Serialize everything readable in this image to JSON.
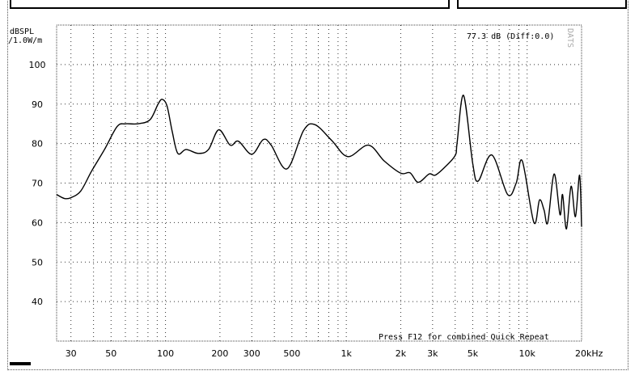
{
  "chart_data": {
    "type": "line",
    "ylabel": "dBSPL",
    "ylabel_unit": "/1.0W/m",
    "xunit": "kHz",
    "xscale": "log",
    "xlim": [
      25,
      20000
    ],
    "ylim": [
      30,
      110
    ],
    "grid": true,
    "x_tick_labels": [
      "30",
      "50",
      "100",
      "200",
      "300",
      "500",
      "1k",
      "2k",
      "3k",
      "5k",
      "10k",
      "20kHz"
    ],
    "x_tick_values": [
      30,
      50,
      100,
      200,
      300,
      500,
      1000,
      2000,
      3000,
      5000,
      10000,
      20000
    ],
    "y_tick_labels": [
      "100",
      "90",
      "80",
      "70",
      "60",
      "50",
      "40"
    ],
    "y_tick_values": [
      100,
      90,
      80,
      70,
      60,
      50,
      40
    ],
    "readout": "77.3 dB (Diff:0.0)",
    "corner_label": "DATS",
    "annotation": "Press F12 for combined Quick Repeat",
    "line_color": "#000000",
    "series": [
      {
        "x": [
          25,
          27.6,
          30,
          34,
          39,
          46,
          54,
          60,
          70,
          82,
          91,
          96,
          102,
          109,
          117,
          130,
          152,
          173,
          197,
          228,
          253,
          300,
          347,
          384,
          470,
          580,
          670,
          830,
          1020,
          1325,
          1620,
          2000,
          2250,
          2500,
          2870,
          3100,
          3500,
          4000,
          4100,
          4450,
          5000,
          5360,
          6380,
          7800,
          8700,
          9400,
          10900,
          11700,
          12400,
          13000,
          14100,
          15200,
          15700,
          16500,
          17500,
          18500,
          19500,
          20000
        ],
        "y": [
          67.1,
          66.1,
          66.3,
          68,
          73,
          78.5,
          84.3,
          85,
          85,
          86,
          90,
          91.2,
          89.5,
          83,
          77.5,
          78.5,
          77.5,
          78.5,
          83.5,
          79.6,
          80.6,
          77.3,
          81,
          79.6,
          73.6,
          83.3,
          84.8,
          80.8,
          76.7,
          79.6,
          75.6,
          72.5,
          72.6,
          70.2,
          72.3,
          72,
          74,
          77,
          80.2,
          92.2,
          75,
          70.5,
          77.1,
          67.1,
          70,
          75.6,
          60,
          65.7,
          63.2,
          60,
          72.3,
          62,
          67.1,
          58.4,
          69.2,
          61.5,
          72,
          59
        ]
      }
    ]
  }
}
